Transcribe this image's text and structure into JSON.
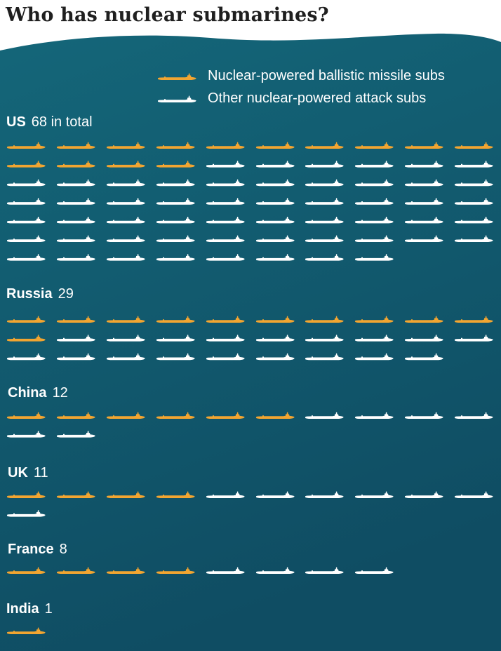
{
  "title": "Who has nuclear submarines?",
  "colors": {
    "ballistic": "#f2a531",
    "attack": "#ffffff",
    "background_top": "#146679",
    "background_bottom": "#0f4d63",
    "title_text": "#1f1f1f"
  },
  "legend": [
    {
      "key": "ballistic",
      "label": "Nuclear-powered ballistic missile subs"
    },
    {
      "key": "attack",
      "label": "Other nuclear-powered attack subs"
    }
  ],
  "chart_data": {
    "type": "pictogram",
    "title": "Who has nuclear submarines?",
    "icons_per_row": 10,
    "series": [
      {
        "name": "Nuclear-powered ballistic missile subs",
        "key": "ballistic"
      },
      {
        "name": "Other nuclear-powered attack subs",
        "key": "attack"
      }
    ],
    "countries": [
      {
        "name": "US",
        "total_label": "68 in total",
        "total": 68,
        "ballistic": 14,
        "attack": 54
      },
      {
        "name": "Russia",
        "total_label": "29",
        "total": 29,
        "ballistic": 11,
        "attack": 18
      },
      {
        "name": "China",
        "total_label": "12",
        "total": 12,
        "ballistic": 6,
        "attack": 6
      },
      {
        "name": "UK",
        "total_label": "11",
        "total": 11,
        "ballistic": 4,
        "attack": 7
      },
      {
        "name": "France",
        "total_label": "8",
        "total": 8,
        "ballistic": 4,
        "attack": 4
      },
      {
        "name": "India",
        "total_label": "1",
        "total": 1,
        "ballistic": 1,
        "attack": 0
      }
    ]
  }
}
